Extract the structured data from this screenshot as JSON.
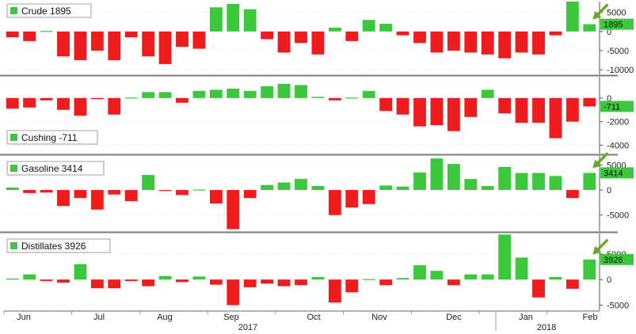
{
  "colors": {
    "positive": "#3cc83c",
    "negative": "#ee1c1c",
    "gridline": "#dcdcdc",
    "divider": "#7a7a7a",
    "arrow": "#6aaa2a",
    "lastValueBox": "#3cc83c"
  },
  "xaxis": {
    "months": [
      "Jun",
      "Jul",
      "Aug",
      "Sep",
      "Oct",
      "Nov",
      "Dec",
      "Jan",
      "Feb"
    ],
    "years": [
      "2017",
      "2018"
    ]
  },
  "chart_data": [
    {
      "type": "bar",
      "legend": "Crude 1895",
      "last_value_label": "1895",
      "yticks": [
        "5000",
        "0",
        "-5000",
        "-10000"
      ],
      "ylim": [
        -11200,
        7800
      ],
      "values": [
        -1500,
        -2500,
        0,
        -6500,
        -7500,
        -5000,
        -7500,
        -1500,
        -6500,
        -8500,
        -4000,
        -4500,
        6300,
        7200,
        5800,
        -2000,
        -5500,
        -3000,
        -6000,
        1000,
        -2500,
        3000,
        2000,
        -1000,
        -3000,
        -5500,
        -5000,
        -5500,
        -6000,
        -7000,
        -5500,
        -6000,
        -1000,
        7800,
        1895
      ]
    },
    {
      "type": "bar",
      "legend": "Cushing -711",
      "last_value_label": "-711",
      "yticks": [
        "0",
        "-2000",
        "-4000"
      ],
      "ylim": [
        -4700,
        1800
      ],
      "values": [
        -900,
        -800,
        -200,
        -1000,
        -1500,
        -100,
        -1400,
        0,
        500,
        500,
        -400,
        600,
        700,
        800,
        600,
        1000,
        1200,
        1100,
        100,
        -200,
        0,
        600,
        -1100,
        -1400,
        -2400,
        -2300,
        -2800,
        -1600,
        700,
        -1300,
        -2100,
        -2100,
        -3400,
        -2000,
        -711
      ]
    },
    {
      "type": "bar",
      "legend": "Gasoline 3414",
      "last_value_label": "3414",
      "yticks": [
        "5000",
        "0",
        "-5000"
      ],
      "ylim": [
        -8200,
        6800
      ],
      "values": [
        500,
        -600,
        -500,
        -3200,
        -1600,
        -3900,
        -900,
        -2200,
        3000,
        -200,
        -1000,
        0,
        -2700,
        -7800,
        -1600,
        1000,
        1500,
        2200,
        800,
        -5000,
        -3500,
        -2800,
        900,
        700,
        3500,
        6300,
        5200,
        2200,
        800,
        4600,
        3400,
        3400,
        2800,
        -1600,
        3414
      ]
    },
    {
      "type": "bar",
      "legend": "Distillates 3926",
      "last_value_label": "3926",
      "yticks": [
        "5000",
        "0",
        "-5000"
      ],
      "ylim": [
        -6000,
        9000
      ],
      "values": [
        200,
        1000,
        -300,
        -600,
        3000,
        -1700,
        -1700,
        -300,
        -1300,
        700,
        -500,
        600,
        -1000,
        -5000,
        -1500,
        -800,
        -1300,
        -1100,
        500,
        -4500,
        -2500,
        0,
        -1100,
        300,
        2800,
        1700,
        -1100,
        1000,
        1000,
        8800,
        4300,
        -3500,
        500,
        -1800,
        3926
      ]
    }
  ]
}
